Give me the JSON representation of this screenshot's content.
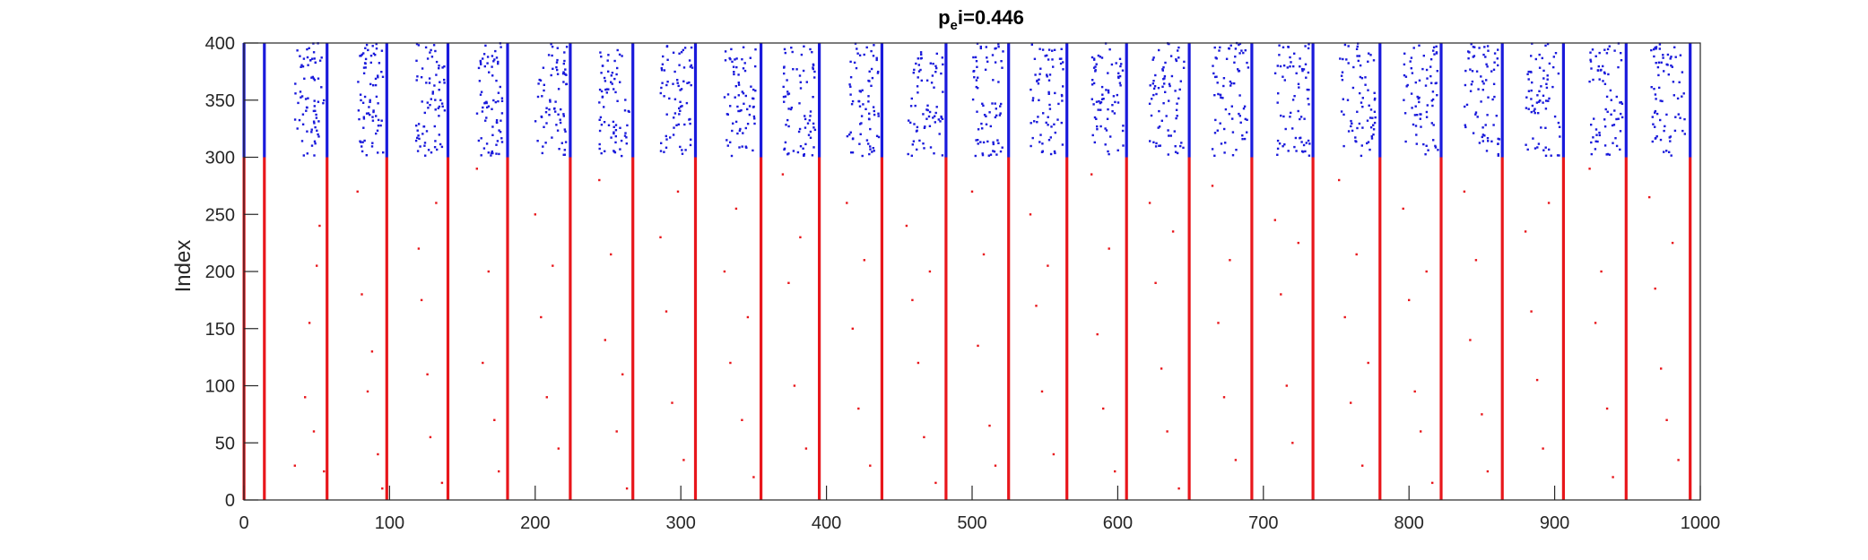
{
  "chart_data": {
    "type": "scatter",
    "title_prefix": "p",
    "title_subscript": "e",
    "title_suffix": "i=0.446",
    "xlabel": "",
    "ylabel": "Index",
    "xlim": [
      0,
      1000
    ],
    "ylim": [
      0,
      400
    ],
    "x_ticks": [
      0,
      100,
      200,
      300,
      400,
      500,
      600,
      700,
      800,
      900,
      1000
    ],
    "y_ticks": [
      0,
      50,
      100,
      150,
      200,
      250,
      300,
      350,
      400
    ],
    "grid": false,
    "legend": "none",
    "series": [
      {
        "color": "#e8161b",
        "index_range": [
          1,
          300
        ],
        "dense_burst_times": [
          0,
          14,
          57,
          98,
          140,
          181,
          224,
          267,
          310,
          355,
          395,
          438,
          482,
          525,
          565,
          606,
          649,
          692,
          734,
          780,
          822,
          864,
          906,
          949,
          993
        ],
        "sparse_interval_points": [
          [
            35,
            30
          ],
          [
            42,
            90
          ],
          [
            45,
            155
          ],
          [
            48,
            60
          ],
          [
            50,
            205
          ],
          [
            52,
            240
          ],
          [
            55,
            25
          ],
          [
            78,
            270
          ],
          [
            81,
            180
          ],
          [
            85,
            95
          ],
          [
            88,
            130
          ],
          [
            92,
            40
          ],
          [
            95,
            10
          ],
          [
            120,
            220
          ],
          [
            122,
            175
          ],
          [
            126,
            110
          ],
          [
            128,
            55
          ],
          [
            132,
            260
          ],
          [
            136,
            15
          ],
          [
            160,
            290
          ],
          [
            164,
            120
          ],
          [
            168,
            200
          ],
          [
            172,
            70
          ],
          [
            175,
            25
          ],
          [
            200,
            250
          ],
          [
            204,
            160
          ],
          [
            208,
            90
          ],
          [
            212,
            205
          ],
          [
            216,
            45
          ],
          [
            244,
            280
          ],
          [
            248,
            140
          ],
          [
            252,
            215
          ],
          [
            256,
            60
          ],
          [
            260,
            110
          ],
          [
            263,
            10
          ],
          [
            286,
            230
          ],
          [
            290,
            165
          ],
          [
            294,
            85
          ],
          [
            298,
            270
          ],
          [
            302,
            35
          ],
          [
            330,
            200
          ],
          [
            334,
            120
          ],
          [
            338,
            255
          ],
          [
            342,
            70
          ],
          [
            346,
            160
          ],
          [
            350,
            20
          ],
          [
            370,
            285
          ],
          [
            374,
            190
          ],
          [
            378,
            100
          ],
          [
            382,
            230
          ],
          [
            386,
            45
          ],
          [
            414,
            260
          ],
          [
            418,
            150
          ],
          [
            422,
            80
          ],
          [
            426,
            210
          ],
          [
            430,
            30
          ],
          [
            455,
            240
          ],
          [
            459,
            175
          ],
          [
            463,
            120
          ],
          [
            467,
            55
          ],
          [
            471,
            200
          ],
          [
            475,
            15
          ],
          [
            500,
            270
          ],
          [
            504,
            135
          ],
          [
            508,
            215
          ],
          [
            512,
            65
          ],
          [
            516,
            30
          ],
          [
            540,
            250
          ],
          [
            544,
            170
          ],
          [
            548,
            95
          ],
          [
            552,
            205
          ],
          [
            556,
            40
          ],
          [
            582,
            285
          ],
          [
            586,
            145
          ],
          [
            590,
            80
          ],
          [
            594,
            220
          ],
          [
            598,
            25
          ],
          [
            622,
            260
          ],
          [
            626,
            190
          ],
          [
            630,
            115
          ],
          [
            634,
            60
          ],
          [
            638,
            235
          ],
          [
            642,
            10
          ],
          [
            665,
            275
          ],
          [
            669,
            155
          ],
          [
            673,
            90
          ],
          [
            677,
            210
          ],
          [
            681,
            35
          ],
          [
            708,
            245
          ],
          [
            712,
            180
          ],
          [
            716,
            100
          ],
          [
            720,
            50
          ],
          [
            724,
            225
          ],
          [
            752,
            280
          ],
          [
            756,
            160
          ],
          [
            760,
            85
          ],
          [
            764,
            215
          ],
          [
            768,
            30
          ],
          [
            772,
            120
          ],
          [
            796,
            255
          ],
          [
            800,
            175
          ],
          [
            804,
            95
          ],
          [
            808,
            60
          ],
          [
            812,
            200
          ],
          [
            816,
            15
          ],
          [
            838,
            270
          ],
          [
            842,
            140
          ],
          [
            846,
            210
          ],
          [
            850,
            75
          ],
          [
            854,
            25
          ],
          [
            880,
            235
          ],
          [
            884,
            165
          ],
          [
            888,
            105
          ],
          [
            892,
            45
          ],
          [
            896,
            260
          ],
          [
            924,
            290
          ],
          [
            928,
            155
          ],
          [
            932,
            200
          ],
          [
            936,
            80
          ],
          [
            940,
            20
          ],
          [
            965,
            265
          ],
          [
            969,
            185
          ],
          [
            973,
            115
          ],
          [
            977,
            70
          ],
          [
            981,
            225
          ],
          [
            985,
            35
          ]
        ]
      },
      {
        "color": "#1a1adb",
        "index_range": [
          301,
          400
        ],
        "dense_burst_times": [
          0,
          14,
          57,
          98,
          140,
          181,
          224,
          267,
          310,
          355,
          395,
          438,
          482,
          525,
          565,
          606,
          649,
          692,
          734,
          780,
          822,
          864,
          906,
          949,
          993
        ],
        "sparse_band_x_ranges": [
          [
            35,
            55
          ],
          [
            78,
            96
          ],
          [
            118,
            138
          ],
          [
            160,
            178
          ],
          [
            200,
            222
          ],
          [
            244,
            265
          ],
          [
            286,
            308
          ],
          [
            330,
            352
          ],
          [
            370,
            393
          ],
          [
            414,
            436
          ],
          [
            456,
            480
          ],
          [
            500,
            522
          ],
          [
            540,
            563
          ],
          [
            582,
            604
          ],
          [
            622,
            646
          ],
          [
            665,
            690
          ],
          [
            708,
            732
          ],
          [
            752,
            777
          ],
          [
            796,
            820
          ],
          [
            838,
            862
          ],
          [
            880,
            904
          ],
          [
            924,
            947
          ],
          [
            965,
            990
          ]
        ]
      }
    ]
  }
}
